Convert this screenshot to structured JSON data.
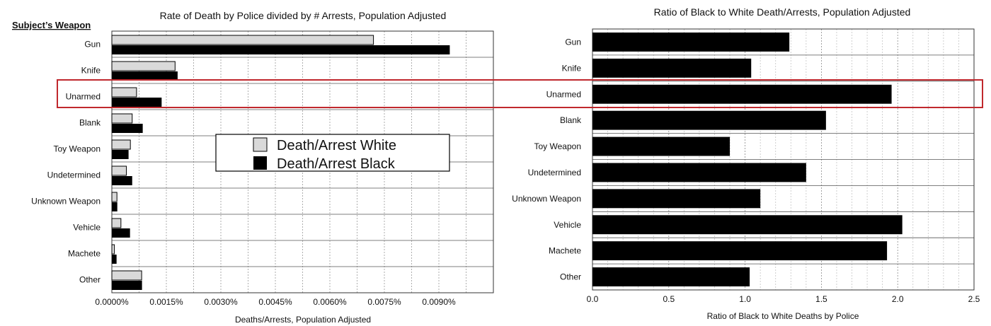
{
  "chart_data": [
    {
      "type": "bar",
      "orientation": "horizontal",
      "title": "Rate of Death by Police divided by # Arrests, Population Adjusted",
      "header": "Subject’s Weapon",
      "xlabel": "Deaths/Arrests, Population Adjusted",
      "xlim": [
        0,
        0.0105
      ],
      "x_ticks": [
        "0.0000%",
        "0.0015%",
        "0.0030%",
        "0.0045%",
        "0.0060%",
        "0.0075%",
        "0.0090%"
      ],
      "categories": [
        "Gun",
        "Knife",
        "Unarmed",
        "Blank",
        "Toy Weapon",
        "Undetermined",
        "Unknown Weapon",
        "Vehicle",
        "Machete",
        "Other"
      ],
      "series": [
        {
          "name": "Death/Arrest White",
          "color": "#d9d9d9",
          "values": [
            0.0072,
            0.00174,
            0.00068,
            0.00056,
            0.00051,
            0.0004,
            0.00014,
            0.00025,
            7e-05,
            0.00082
          ]
        },
        {
          "name": "Death/Arrest Black",
          "color": "#000000",
          "values": [
            0.0093,
            0.00181,
            0.00137,
            0.00085,
            0.00046,
            0.00056,
            0.00015,
            0.0005,
            0.00013,
            0.00083
          ]
        }
      ],
      "legend": {
        "placement": "center",
        "entries": [
          "Death/Arrest White",
          "Death/Arrest Black"
        ]
      },
      "highlight": "Unarmed",
      "grid": true
    },
    {
      "type": "bar",
      "orientation": "horizontal",
      "title": "Ratio of Black to White Death/Arrests, Population Adjusted",
      "xlabel": "Ratio of Black to White Deaths by Police",
      "xlim": [
        0,
        2.5
      ],
      "x_ticks": [
        "0.0",
        "0.5",
        "1.0",
        "1.5",
        "2.0",
        "2.5"
      ],
      "categories": [
        "Gun",
        "Knife",
        "Unarmed",
        "Blank",
        "Toy Weapon",
        "Undetermined",
        "Unknown Weapon",
        "Vehicle",
        "Machete",
        "Other"
      ],
      "series": [
        {
          "color": "#000000",
          "values": [
            1.29,
            1.04,
            1.96,
            1.53,
            0.9,
            1.4,
            1.1,
            2.03,
            1.93,
            1.03
          ]
        }
      ],
      "highlight": "Unarmed",
      "grid": true
    }
  ],
  "colors": {
    "highlight": "#c0282d",
    "white_bar": "#d9d9d9",
    "black_bar": "#000000"
  }
}
